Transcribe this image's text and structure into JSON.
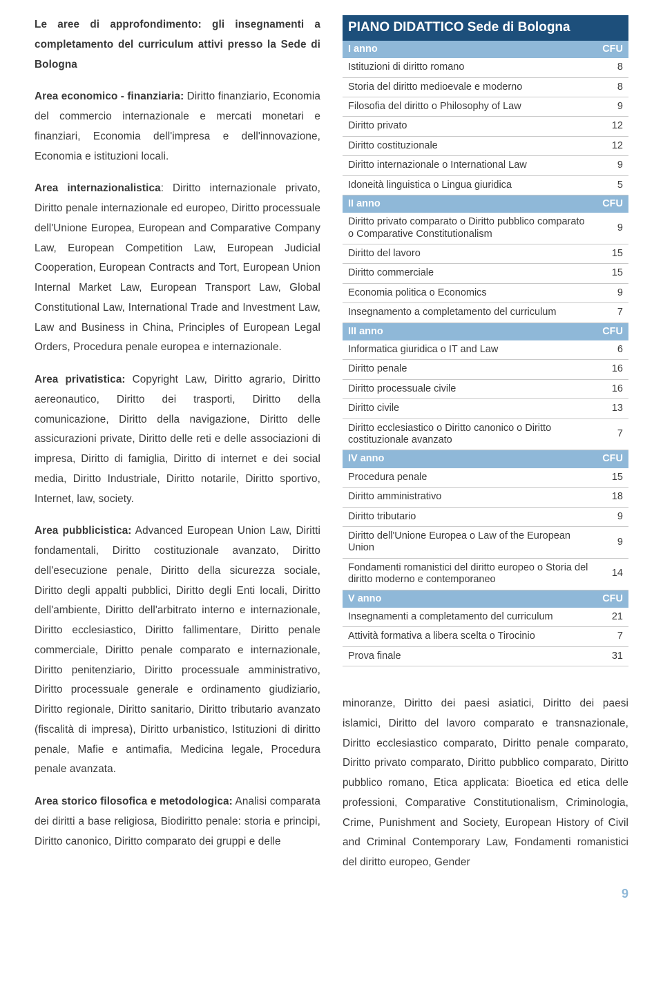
{
  "left": {
    "intro_bold": "Le aree di approfondimento: gli insegnamenti a completamento del curriculum attivi presso la Sede di Bologna",
    "p1_bold": "Area economico - finanziaria:",
    "p1_rest": " Diritto finanziario, Economia del commercio internazionale e mercati monetari e finanziari, Economia dell'impresa e dell'innovazione, Economia e istituzioni locali.",
    "p2_bold": "Area internazionalistica",
    "p2_rest": ": Diritto internazionale privato, Diritto penale internazionale ed europeo, Diritto processuale dell'Unione Europea, European and Comparative Company Law, European Competition Law, European Judicial Cooperation, European Contracts and Tort, European Union Internal Market Law, European Transport Law, Global Constitutional Law, International Trade and Investment Law, Law and Business in China, Principles of European Legal Orders, Procedura penale europea e internazionale.",
    "p3_bold": "Area privatistica:",
    "p3_rest": " Copyright Law, Diritto agrario, Diritto aereonautico, Diritto dei trasporti, Diritto della comunicazione, Diritto della navigazione, Diritto delle assicurazioni private, Diritto delle reti e delle associazioni di impresa, Diritto di famiglia, Diritto di internet e dei social media, Diritto Industriale, Diritto notarile, Diritto sportivo, Internet, law, society.",
    "p4_bold": "Area pubblicistica:",
    "p4_rest": " Advanced European Union Law, Diritti fondamentali, Diritto costituzionale avanzato, Diritto dell'esecuzione penale, Diritto della sicurezza sociale, Diritto degli appalti pubblici, Diritto degli Enti locali, Diritto dell'ambiente, Diritto dell'arbitrato interno e internazionale, Diritto ecclesiastico, Diritto fallimentare, Diritto penale commerciale, Diritto penale comparato e internazionale, Diritto penitenziario, Diritto processuale amministrativo, Diritto processuale generale e ordinamento giudiziario, Diritto regionale, Diritto sanitario, Diritto tributario avanzato (fiscalità di impresa), Diritto urbanistico, Istituzioni di diritto penale, Mafie e antimafia, Medicina legale, Procedura penale avanzata.",
    "p5_bold": "Area storico filosofica e metodologica:",
    "p5_rest": " Analisi comparata dei diritti a base religiosa, Biodiritto penale: storia e principi, Diritto canonico, Diritto comparato dei gruppi e delle"
  },
  "plan": {
    "title": "PIANO DIDATTICO Sede di Bologna",
    "cfu_label": "CFU",
    "years": [
      {
        "label": "I anno",
        "rows": [
          {
            "name": "Istituzioni di diritto romano",
            "cfu": "8"
          },
          {
            "name": "Storia del diritto medioevale e moderno",
            "cfu": "8"
          },
          {
            "name": "Filosofia del diritto o Philosophy of Law",
            "cfu": "9"
          },
          {
            "name": "Diritto privato",
            "cfu": "12"
          },
          {
            "name": "Diritto costituzionale",
            "cfu": "12"
          },
          {
            "name": "Diritto internazionale o International Law",
            "cfu": "9"
          },
          {
            "name": "Idoneità linguistica o Lingua giuridica",
            "cfu": "5"
          }
        ]
      },
      {
        "label": "II anno",
        "rows": [
          {
            "name": "Diritto privato comparato o Diritto pubblico comparato o Comparative Constitutionalism",
            "cfu": "9"
          },
          {
            "name": "Diritto del lavoro",
            "cfu": "15"
          },
          {
            "name": "Diritto commerciale",
            "cfu": "15"
          },
          {
            "name": "Economia politica o Economics",
            "cfu": "9"
          },
          {
            "name": "Insegnamento a completamento del curriculum",
            "cfu": "7"
          }
        ]
      },
      {
        "label": "III anno",
        "rows": [
          {
            "name": "Informatica giuridica o IT and Law",
            "cfu": "6"
          },
          {
            "name": "Diritto penale",
            "cfu": "16"
          },
          {
            "name": "Diritto processuale civile",
            "cfu": "16"
          },
          {
            "name": "Diritto civile",
            "cfu": "13"
          },
          {
            "name": "Diritto ecclesiastico o Diritto canonico o Diritto costituzionale avanzato",
            "cfu": "7"
          }
        ]
      },
      {
        "label": "IV anno",
        "rows": [
          {
            "name": "Procedura penale",
            "cfu": "15"
          },
          {
            "name": "Diritto amministrativo",
            "cfu": "18"
          },
          {
            "name": "Diritto tributario",
            "cfu": "9"
          },
          {
            "name": "Diritto dell'Unione Europea o Law of the European Union",
            "cfu": "9"
          },
          {
            "name": "Fondamenti romanistici del diritto europeo o Storia del diritto moderno e contemporaneo",
            "cfu": "14"
          }
        ]
      },
      {
        "label": "V anno",
        "rows": [
          {
            "name": "Insegnamenti a completamento del curriculum",
            "cfu": "21"
          },
          {
            "name": "Attività formativa a libera scelta o Tirocinio",
            "cfu": "7"
          },
          {
            "name": "Prova finale",
            "cfu": "31"
          }
        ]
      }
    ]
  },
  "right_cont": "minoranze, Diritto dei paesi asiatici, Diritto dei paesi islamici, Diritto del lavoro comparato e transnazionale, Diritto ecclesiastico comparato, Diritto penale comparato, Diritto privato comparato, Diritto pubblico comparato, Diritto pubblico romano, Etica applicata: Bioetica ed etica delle professioni, Comparative Constitutionalism, Criminologia, Crime, Punishment and Society, European History of Civil and Criminal Contemporary Law, Fondamenti romanistici del diritto europeo, Gender",
  "page_num": "9"
}
